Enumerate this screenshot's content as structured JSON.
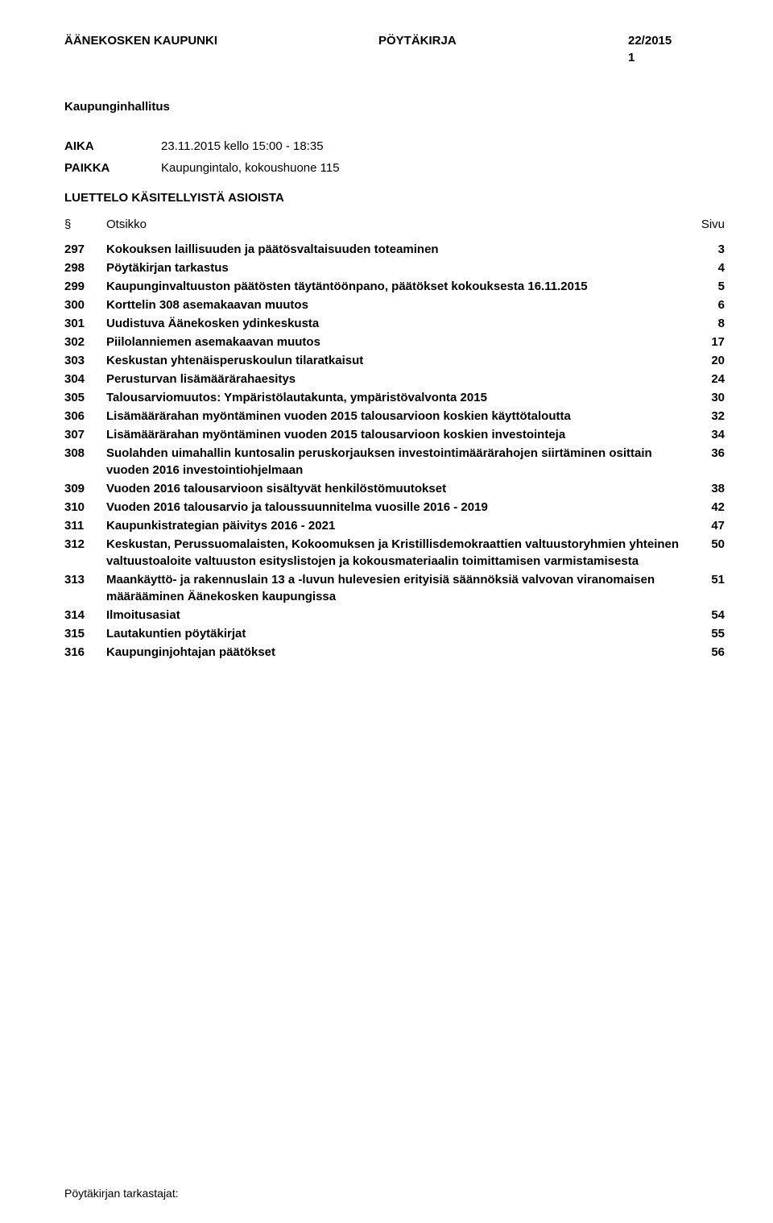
{
  "header": {
    "org": "ÄÄNEKOSKEN KAUPUNKI",
    "doc_type": "PÖYTÄKIRJA",
    "doc_number": "22/2015",
    "page_num": "1"
  },
  "meeting": {
    "title": "Kaupunginhallitus",
    "time_label": "AIKA",
    "time_value": "23.11.2015 kello 15:00 - 18:35",
    "place_label": "PAIKKA",
    "place_value": "Kaupungintalo, kokoushuone 115"
  },
  "agenda": {
    "heading": "LUETTELO KÄSITELLYISTÄ ASIOISTA",
    "col_section": "§",
    "col_title": "Otsikko",
    "col_page": "Sivu",
    "items": [
      {
        "num": "297",
        "title": "Kokouksen laillisuuden ja päätösvaltaisuuden toteaminen",
        "page": "3"
      },
      {
        "num": "298",
        "title": "Pöytäkirjan tarkastus",
        "page": "4"
      },
      {
        "num": "299",
        "title": "Kaupunginvaltuuston päätösten täytäntöönpano, päätökset kokouksesta 16.11.2015",
        "page": "5"
      },
      {
        "num": "300",
        "title": "Korttelin 308 asemakaavan muutos",
        "page": "6"
      },
      {
        "num": "301",
        "title": "Uudistuva Äänekosken ydinkeskusta",
        "page": "8"
      },
      {
        "num": "302",
        "title": "Piilolanniemen asemakaavan muutos",
        "page": "17"
      },
      {
        "num": "303",
        "title": "Keskustan yhtenäisperuskoulun tilaratkaisut",
        "page": "20"
      },
      {
        "num": "304",
        "title": "Perusturvan lisämäärärahaesitys",
        "page": "24"
      },
      {
        "num": "305",
        "title": "Talousarviomuutos: Ympäristölautakunta, ympäristövalvonta 2015",
        "page": "30"
      },
      {
        "num": "306",
        "title": "Lisämäärärahan myöntäminen vuoden 2015 talousarvioon koskien käyttötaloutta",
        "page": "32"
      },
      {
        "num": "307",
        "title": "Lisämäärärahan myöntäminen vuoden 2015 talousarvioon koskien investointeja",
        "page": "34"
      },
      {
        "num": "308",
        "title": "Suolahden uimahallin kuntosalin peruskorjauksen investointimäärärahojen siirtäminen osittain vuoden 2016 investointiohjelmaan",
        "page": "36"
      },
      {
        "num": "309",
        "title": "Vuoden 2016 talousarvioon sisältyvät henkilöstömuutokset",
        "page": "38"
      },
      {
        "num": "310",
        "title": "Vuoden 2016 talousarvio ja taloussuunnitelma vuosille 2016 - 2019",
        "page": "42"
      },
      {
        "num": "311",
        "title": "Kaupunkistrategian päivitys 2016 - 2021",
        "page": "47"
      },
      {
        "num": "312",
        "title": "Keskustan, Perussuomalaisten, Kokoomuksen ja Kristillisdemokraattien valtuustoryhmien yhteinen valtuustoaloite valtuuston esityslistojen ja kokousmateriaalin toimittamisen varmistamisesta",
        "page": "50"
      },
      {
        "num": "313",
        "title": "Maankäyttö- ja rakennuslain 13 a -luvun hulevesien erityisiä säännöksiä valvovan viranomaisen määrääminen Äänekosken kaupungissa",
        "page": "51"
      },
      {
        "num": "314",
        "title": "Ilmoitusasiat",
        "page": "54"
      },
      {
        "num": "315",
        "title": "Lautakuntien pöytäkirjat",
        "page": "55"
      },
      {
        "num": "316",
        "title": "Kaupunginjohtajan päätökset",
        "page": "56"
      }
    ]
  },
  "footer": {
    "text": "Pöytäkirjan tarkastajat:"
  }
}
